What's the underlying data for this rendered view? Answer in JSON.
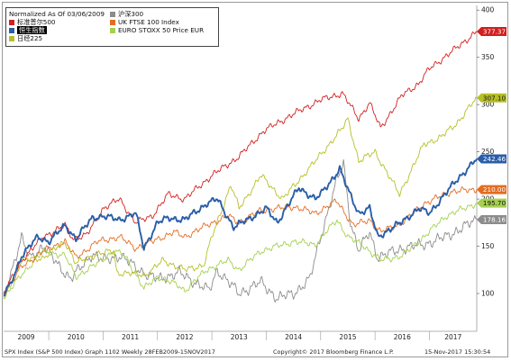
{
  "footer": {
    "left": "SPX Index (S&P 500 Index) Graph 1102  Weekly 28FEB2009-15NOV2017",
    "copyright": "Copyright© 2017 Bloomberg Finance L.P.",
    "timestamp": "15-Nov-2017 15:30:54"
  },
  "chart_data": {
    "type": "line",
    "title": "",
    "xlabel": "",
    "ylabel": "",
    "legend_title": "Normalized As Of 03/06/2009",
    "legend_position": "top-left",
    "grid": false,
    "x_ticks": [
      "2009",
      "2010",
      "2011",
      "2012",
      "2013",
      "2014",
      "2015",
      "2016",
      "2017"
    ],
    "y_ticks": [
      100,
      150,
      200,
      250,
      300,
      350,
      400
    ],
    "ylim": [
      60,
      405
    ],
    "xlim": [
      2009.17,
      2017.87
    ],
    "series": [
      {
        "name": "标准普尔500",
        "color": "#d21f1f",
        "last_value_label": "377.37",
        "points": [
          [
            2009.17,
            100
          ],
          [
            2009.5,
            135
          ],
          [
            2009.9,
            160
          ],
          [
            2010.3,
            172
          ],
          [
            2010.45,
            158
          ],
          [
            2010.7,
            162
          ],
          [
            2011.0,
            190
          ],
          [
            2011.3,
            200
          ],
          [
            2011.6,
            175
          ],
          [
            2011.9,
            182
          ],
          [
            2012.2,
            205
          ],
          [
            2012.5,
            200
          ],
          [
            2012.8,
            215
          ],
          [
            2013.0,
            225
          ],
          [
            2013.5,
            245
          ],
          [
            2013.95,
            272
          ],
          [
            2014.5,
            290
          ],
          [
            2015.0,
            305
          ],
          [
            2015.4,
            312
          ],
          [
            2015.7,
            285
          ],
          [
            2015.9,
            302
          ],
          [
            2016.1,
            275
          ],
          [
            2016.5,
            310
          ],
          [
            2016.8,
            322
          ],
          [
            2017.0,
            338
          ],
          [
            2017.5,
            360
          ],
          [
            2017.87,
            377.37
          ]
        ]
      },
      {
        "name": "恒生指数",
        "color": "#2a5ea8",
        "last_value_label": "242.46",
        "points": [
          [
            2009.17,
            98
          ],
          [
            2009.3,
            110
          ],
          [
            2009.5,
            140
          ],
          [
            2009.8,
            160
          ],
          [
            2010.0,
            155
          ],
          [
            2010.3,
            172
          ],
          [
            2010.5,
            158
          ],
          [
            2010.8,
            180
          ],
          [
            2011.0,
            182
          ],
          [
            2011.3,
            178
          ],
          [
            2011.6,
            185
          ],
          [
            2011.75,
            148
          ],
          [
            2012.0,
            175
          ],
          [
            2012.2,
            180
          ],
          [
            2012.5,
            178
          ],
          [
            2012.9,
            195
          ],
          [
            2013.1,
            200
          ],
          [
            2013.4,
            170
          ],
          [
            2013.8,
            183
          ],
          [
            2014.0,
            190
          ],
          [
            2014.2,
            175
          ],
          [
            2014.6,
            212
          ],
          [
            2014.9,
            200
          ],
          [
            2015.0,
            205
          ],
          [
            2015.25,
            224
          ],
          [
            2015.35,
            232
          ],
          [
            2015.5,
            210
          ],
          [
            2015.7,
            185
          ],
          [
            2015.9,
            190
          ],
          [
            2016.05,
            160
          ],
          [
            2016.5,
            176
          ],
          [
            2016.8,
            190
          ],
          [
            2017.0,
            185
          ],
          [
            2017.5,
            220
          ],
          [
            2017.87,
            242.46
          ]
        ]
      },
      {
        "name": "日经225",
        "color": "#b7bf27",
        "last_value_label": "307.10",
        "points": [
          [
            2009.17,
            95
          ],
          [
            2009.5,
            135
          ],
          [
            2009.9,
            138
          ],
          [
            2010.3,
            155
          ],
          [
            2010.5,
            132
          ],
          [
            2010.9,
            142
          ],
          [
            2011.2,
            145
          ],
          [
            2011.25,
            122
          ],
          [
            2011.8,
            120
          ],
          [
            2012.1,
            135
          ],
          [
            2012.5,
            125
          ],
          [
            2012.85,
            130
          ],
          [
            2013.0,
            160
          ],
          [
            2013.35,
            215
          ],
          [
            2013.5,
            190
          ],
          [
            2013.9,
            225
          ],
          [
            2014.3,
            200
          ],
          [
            2014.9,
            240
          ],
          [
            2015.4,
            275
          ],
          [
            2015.5,
            285
          ],
          [
            2015.7,
            240
          ],
          [
            2016.0,
            250
          ],
          [
            2016.45,
            205
          ],
          [
            2016.9,
            258
          ],
          [
            2017.2,
            265
          ],
          [
            2017.5,
            280
          ],
          [
            2017.87,
            307.1
          ]
        ]
      },
      {
        "name": "沪深300",
        "color": "#8c8c8c",
        "last_value_label": "178.16",
        "points": [
          [
            2009.17,
            98
          ],
          [
            2009.5,
            158
          ],
          [
            2009.65,
            138
          ],
          [
            2009.9,
            150
          ],
          [
            2010.4,
            115
          ],
          [
            2010.8,
            142
          ],
          [
            2011.0,
            135
          ],
          [
            2011.3,
            140
          ],
          [
            2011.8,
            120
          ],
          [
            2012.0,
            115
          ],
          [
            2012.4,
            122
          ],
          [
            2012.95,
            103
          ],
          [
            2013.1,
            125
          ],
          [
            2013.5,
            100
          ],
          [
            2013.9,
            112
          ],
          [
            2014.2,
            95
          ],
          [
            2014.5,
            100
          ],
          [
            2014.8,
            115
          ],
          [
            2015.0,
            160
          ],
          [
            2015.3,
            220
          ],
          [
            2015.42,
            238
          ],
          [
            2015.55,
            175
          ],
          [
            2015.7,
            145
          ],
          [
            2015.9,
            165
          ],
          [
            2016.05,
            138
          ],
          [
            2016.5,
            148
          ],
          [
            2016.9,
            152
          ],
          [
            2017.3,
            160
          ],
          [
            2017.87,
            178.16
          ]
        ]
      },
      {
        "name": "UK FTSE 100 Index",
        "color": "#e46c21",
        "last_value_label": "210.00",
        "points": [
          [
            2009.17,
            100
          ],
          [
            2009.5,
            128
          ],
          [
            2009.9,
            145
          ],
          [
            2010.3,
            155
          ],
          [
            2010.5,
            138
          ],
          [
            2010.9,
            155
          ],
          [
            2011.3,
            160
          ],
          [
            2011.6,
            148
          ],
          [
            2011.9,
            155
          ],
          [
            2012.3,
            165
          ],
          [
            2012.5,
            160
          ],
          [
            2012.9,
            172
          ],
          [
            2013.3,
            182
          ],
          [
            2013.5,
            175
          ],
          [
            2013.9,
            188
          ],
          [
            2014.5,
            192
          ],
          [
            2014.9,
            185
          ],
          [
            2015.3,
            198
          ],
          [
            2015.6,
            172
          ],
          [
            2015.9,
            178
          ],
          [
            2016.1,
            165
          ],
          [
            2016.5,
            175
          ],
          [
            2016.9,
            195
          ],
          [
            2017.4,
            208
          ],
          [
            2017.87,
            210.0
          ]
        ]
      },
      {
        "name": "EURO STOXX 50 Price EUR",
        "color": "#a6d04f",
        "last_value_label": "195.70",
        "points": [
          [
            2009.17,
            95
          ],
          [
            2009.5,
            120
          ],
          [
            2009.9,
            145
          ],
          [
            2010.3,
            140
          ],
          [
            2010.5,
            118
          ],
          [
            2010.9,
            132
          ],
          [
            2011.2,
            145
          ],
          [
            2011.4,
            140
          ],
          [
            2011.75,
            105
          ],
          [
            2012.0,
            118
          ],
          [
            2012.4,
            108
          ],
          [
            2012.5,
            103
          ],
          [
            2012.9,
            125
          ],
          [
            2013.3,
            135
          ],
          [
            2013.5,
            125
          ],
          [
            2013.9,
            145
          ],
          [
            2014.5,
            155
          ],
          [
            2014.9,
            152
          ],
          [
            2015.3,
            178
          ],
          [
            2015.5,
            160
          ],
          [
            2015.8,
            150
          ],
          [
            2016.1,
            135
          ],
          [
            2016.5,
            140
          ],
          [
            2016.9,
            160
          ],
          [
            2017.3,
            182
          ],
          [
            2017.87,
            195.7
          ]
        ]
      }
    ]
  }
}
